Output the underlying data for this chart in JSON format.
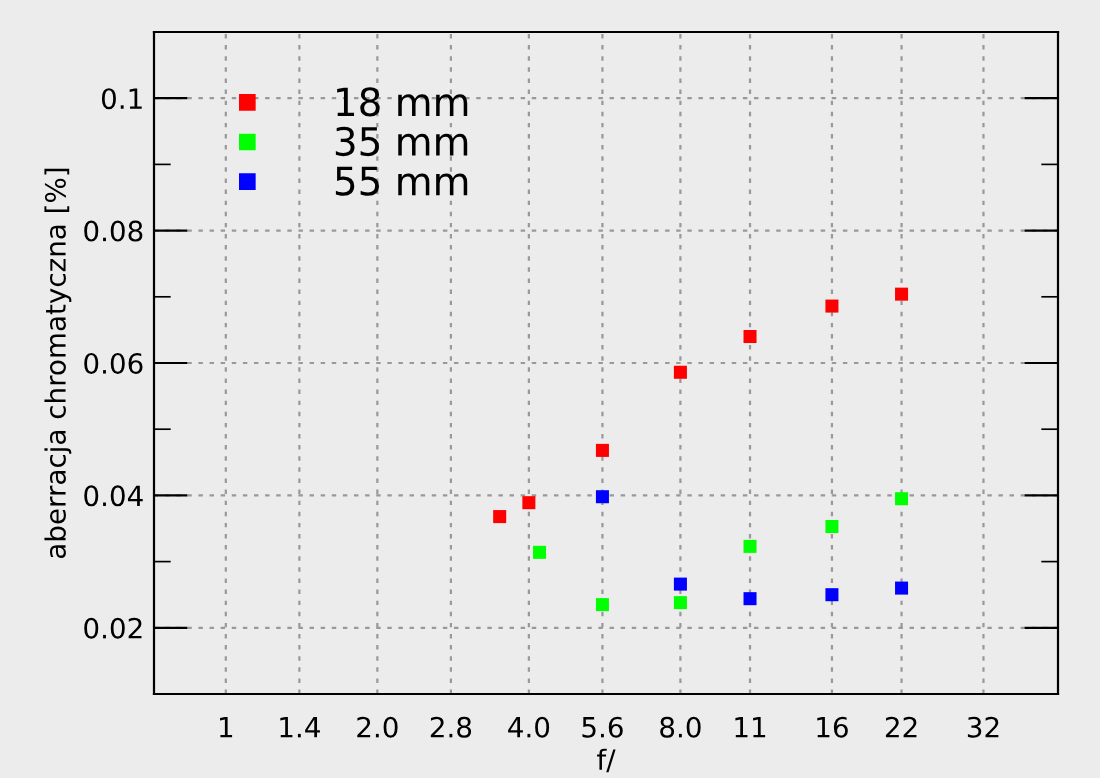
{
  "chart_data": {
    "type": "scatter",
    "xlabel": "f/",
    "ylabel": "aberracja chromatyczna [%]",
    "log": "x",
    "xlim": [
      0.72,
      45
    ],
    "xticks": [
      1,
      1.4,
      {
        "value": 2,
        "label": "2.0"
      },
      2.8,
      {
        "value": 4,
        "label": "4.0"
      },
      5.6,
      {
        "value": 8,
        "label": "8.0"
      },
      11,
      16,
      22,
      32
    ],
    "ylim": [
      0.01,
      0.11
    ],
    "yticks": [
      {
        "value": 0.01,
        "label": null
      },
      0.02,
      {
        "value": 0.03,
        "label": null
      },
      0.04,
      {
        "value": 0.05,
        "label": null
      },
      0.06,
      {
        "value": 0.07,
        "label": null
      },
      0.08,
      {
        "value": 0.09,
        "label": null
      },
      0.1
    ],
    "grid": true,
    "legend": "top left",
    "marker": "square",
    "series": [
      {
        "name": "18 mm",
        "color": "#ff0000",
        "x": [
          3.5,
          4,
          5.6,
          8,
          11,
          16,
          22
        ],
        "values": [
          0.0368,
          0.0389,
          0.0468,
          0.0586,
          0.064,
          0.0686,
          0.0704
        ]
      },
      {
        "name": "35 mm",
        "color": "#00ff00",
        "x": [
          4.2,
          5.6,
          8,
          11,
          16,
          22
        ],
        "values": [
          0.0314,
          0.0235,
          0.0238,
          0.0323,
          0.0353,
          0.0395
        ]
      },
      {
        "name": "55 mm",
        "color": "#0000ff",
        "x": [
          5.6,
          8,
          11,
          16,
          22
        ],
        "values": [
          0.0398,
          0.0266,
          0.0244,
          0.025,
          0.026
        ]
      }
    ]
  }
}
